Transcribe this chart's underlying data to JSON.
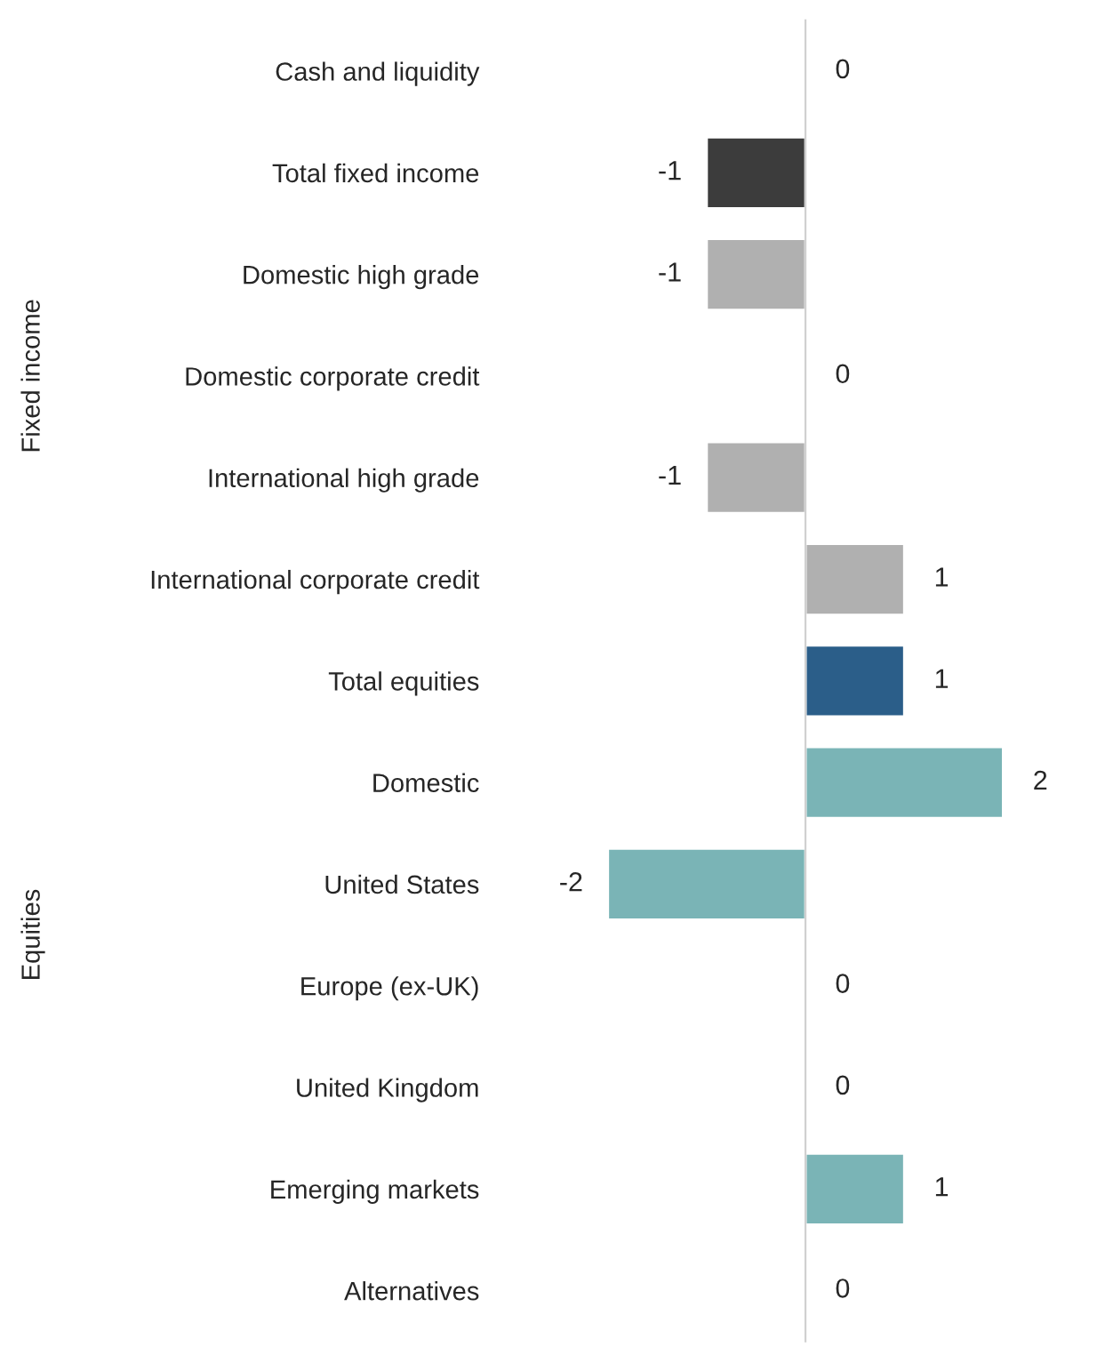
{
  "chart_data": {
    "type": "bar",
    "orientation": "horizontal",
    "categories": [
      "Cash and liquidity",
      "Total fixed income",
      "Domestic high grade",
      "Domestic corporate credit",
      "International high grade",
      "International corporate credit",
      "Total equities",
      "Domestic",
      "United States",
      "Europe (ex-UK)",
      "United Kingdom",
      "Emerging markets",
      "Alternatives"
    ],
    "values": [
      0,
      -1,
      -1,
      0,
      -1,
      1,
      1,
      2,
      -2,
      0,
      0,
      1,
      0
    ],
    "colors": [
      null,
      "#3c3c3c",
      "#b0b0b0",
      null,
      "#b0b0b0",
      "#b0b0b0",
      "#2b5e89",
      "#7ab4b6",
      "#7ab4b6",
      null,
      null,
      "#7ab4b6",
      null
    ],
    "data_labels": true,
    "tick_labels": "y",
    "grid": false,
    "legend": false,
    "annotations": [
      "Fixed income",
      "Equities"
    ]
  }
}
